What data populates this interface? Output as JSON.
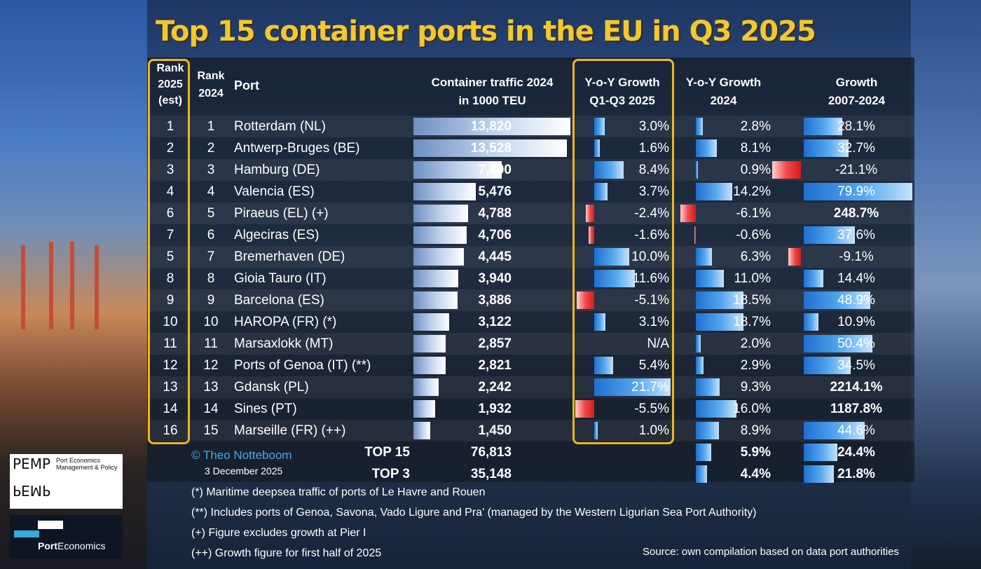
{
  "title": "Top 15 container ports in the EU in Q3 2025",
  "headers": {
    "rank2025": [
      "Rank",
      "2025",
      "(est)"
    ],
    "rank2024": [
      "Rank",
      "2024"
    ],
    "port": "Port",
    "teu": [
      "Container traffic 2024",
      "in 1000 TEU"
    ],
    "g25": [
      "Y-o-Y Growth",
      "Q1-Q3 2025"
    ],
    "g24": [
      "Y-o-Y Growth",
      "2024"
    ],
    "g07": [
      "Growth",
      "2007-2024"
    ]
  },
  "chart_data": {
    "type": "table",
    "columns": [
      "Rank 2025 (est)",
      "Rank 2024",
      "Port",
      "Container traffic 2024 in 1000 TEU",
      "Y-o-Y Growth Q1-Q3 2025",
      "Y-o-Y Growth 2024",
      "Growth 2007-2024"
    ],
    "rows": [
      {
        "r25": "1",
        "r24": "1",
        "port": "Rotterdam (NL)",
        "teu": 13820,
        "teu_label": "13,820",
        "g25": 3.0,
        "g25_label": "3.0%",
        "g24": 2.8,
        "g24_label": "2.8%",
        "g07": 28.1,
        "g07_label": "28.1%"
      },
      {
        "r25": "2",
        "r24": "2",
        "port": "Antwerp-Bruges (BE)",
        "teu": 13528,
        "teu_label": "13,528",
        "g25": 1.6,
        "g25_label": "1.6%",
        "g24": 8.1,
        "g24_label": "8.1%",
        "g07": 32.7,
        "g07_label": "32.7%"
      },
      {
        "r25": "3",
        "r24": "3",
        "port": "Hamburg (DE)",
        "teu": 7800,
        "teu_label": "7,800",
        "g25": 8.4,
        "g25_label": "8.4%",
        "g24": 0.9,
        "g24_label": "0.9%",
        "g07": -21.1,
        "g07_label": "-21.1%"
      },
      {
        "r25": "4",
        "r24": "4",
        "port": "Valencia (ES)",
        "teu": 5476,
        "teu_label": "5,476",
        "g25": 3.7,
        "g25_label": "3.7%",
        "g24": 14.2,
        "g24_label": "14.2%",
        "g07": 79.9,
        "g07_label": "79.9%"
      },
      {
        "r25": "6",
        "r24": "5",
        "port": "Piraeus (EL) (+)",
        "teu": 4788,
        "teu_label": "4,788",
        "g25": -2.4,
        "g25_label": "-2.4%",
        "g24": -6.1,
        "g24_label": "-6.1%",
        "g07": 248.7,
        "g07_label": "248.7%",
        "g07_bold": true
      },
      {
        "r25": "7",
        "r24": "6",
        "port": "Algeciras (ES)",
        "teu": 4706,
        "teu_label": "4,706",
        "g25": -1.6,
        "g25_label": "-1.6%",
        "g24": -0.6,
        "g24_label": "-0.6%",
        "g07": 37.6,
        "g07_label": "37.6%"
      },
      {
        "r25": "5",
        "r24": "7",
        "port": "Bremerhaven (DE)",
        "teu": 4445,
        "teu_label": "4,445",
        "g25": 10.0,
        "g25_label": "10.0%",
        "g24": 6.3,
        "g24_label": "6.3%",
        "g07": -9.1,
        "g07_label": "-9.1%"
      },
      {
        "r25": "8",
        "r24": "8",
        "port": "Gioia Tauro (IT)",
        "teu": 3940,
        "teu_label": "3,940",
        "g25": 11.6,
        "g25_label": "11.6%",
        "g24": 11.0,
        "g24_label": "11.0%",
        "g07": 14.4,
        "g07_label": "14.4%"
      },
      {
        "r25": "9",
        "r24": "9",
        "port": "Barcelona (ES)",
        "teu": 3886,
        "teu_label": "3,886",
        "g25": -5.1,
        "g25_label": "-5.1%",
        "g24": 18.5,
        "g24_label": "18.5%",
        "g07": 48.9,
        "g07_label": "48.9%"
      },
      {
        "r25": "10",
        "r24": "10",
        "port": "HAROPA (FR) (*)",
        "teu": 3122,
        "teu_label": "3,122",
        "g25": 3.1,
        "g25_label": "3.1%",
        "g24": 18.7,
        "g24_label": "18.7%",
        "g07": 10.9,
        "g07_label": "10.9%"
      },
      {
        "r25": "11",
        "r24": "11",
        "port": "Marsaxlokk (MT)",
        "teu": 2857,
        "teu_label": "2,857",
        "g25": null,
        "g25_label": "N/A",
        "g24": 2.0,
        "g24_label": "2.0%",
        "g07": 50.4,
        "g07_label": "50.4%"
      },
      {
        "r25": "12",
        "r24": "12",
        "port": "Ports of Genoa (IT) (**)",
        "teu": 2821,
        "teu_label": "2,821",
        "g25": 5.4,
        "g25_label": "5.4%",
        "g24": 2.9,
        "g24_label": "2.9%",
        "g07": 34.5,
        "g07_label": "34.5%"
      },
      {
        "r25": "13",
        "r24": "13",
        "port": "Gdansk (PL)",
        "teu": 2242,
        "teu_label": "2,242",
        "g25": 21.7,
        "g25_label": "21.7%",
        "g24": 9.3,
        "g24_label": "9.3%",
        "g07": 2214.1,
        "g07_label": "2214.1%",
        "g07_bold": true
      },
      {
        "r25": "14",
        "r24": "14",
        "port": "Sines (PT)",
        "teu": 1932,
        "teu_label": "1,932",
        "g25": -5.5,
        "g25_label": "-5.5%",
        "g24": 16.0,
        "g24_label": "16.0%",
        "g07": 1187.8,
        "g07_label": "1187.8%",
        "g07_bold": true
      },
      {
        "r25": "16",
        "r24": "15",
        "port": "Marseille (FR) (++)",
        "teu": 1450,
        "teu_label": "1,450",
        "g25": 1.0,
        "g25_label": "1.0%",
        "g24": 8.9,
        "g24_label": "8.9%",
        "g07": 44.6,
        "g07_label": "44.6%"
      }
    ],
    "totals": [
      {
        "label": "TOP 15",
        "teu_label": "76,813",
        "g24": 5.9,
        "g24_label": "5.9%",
        "g07": 24.4,
        "g07_label": "24.4%"
      },
      {
        "label": "TOP 3",
        "teu_label": "35,148",
        "g24": 4.4,
        "g24_label": "4.4%",
        "g07": 21.8,
        "g07_label": "21.8%"
      }
    ]
  },
  "credit": {
    "author": "© Theo Notteboom",
    "date": "3 December 2025"
  },
  "footnotes": [
    "(*) Maritime deepsea traffic of ports of Le Havre and Rouen",
    "(**) Includes ports of Genoa, Savona, Vado Ligure and Pra' (managed by the Western Ligurian Sea Port Authority)",
    "(+) Figure excludes growth at Pier I",
    "(++) Growth figure for first half of 2025"
  ],
  "source": "Source: own compilation based on data port authorities",
  "logos": {
    "pemp_text": "PEMP",
    "pemp_sub1": "Port Economics",
    "pemp_sub2": "Management & Policy",
    "pe_text_bold": "Port",
    "pe_text": "Economics"
  },
  "colors": {
    "title": "#f2c82e",
    "highlight": "#f3b519",
    "positive_bar": "#3a8fe6",
    "negative_bar": "#e03030",
    "teu_bar": "#c6d6ee"
  }
}
